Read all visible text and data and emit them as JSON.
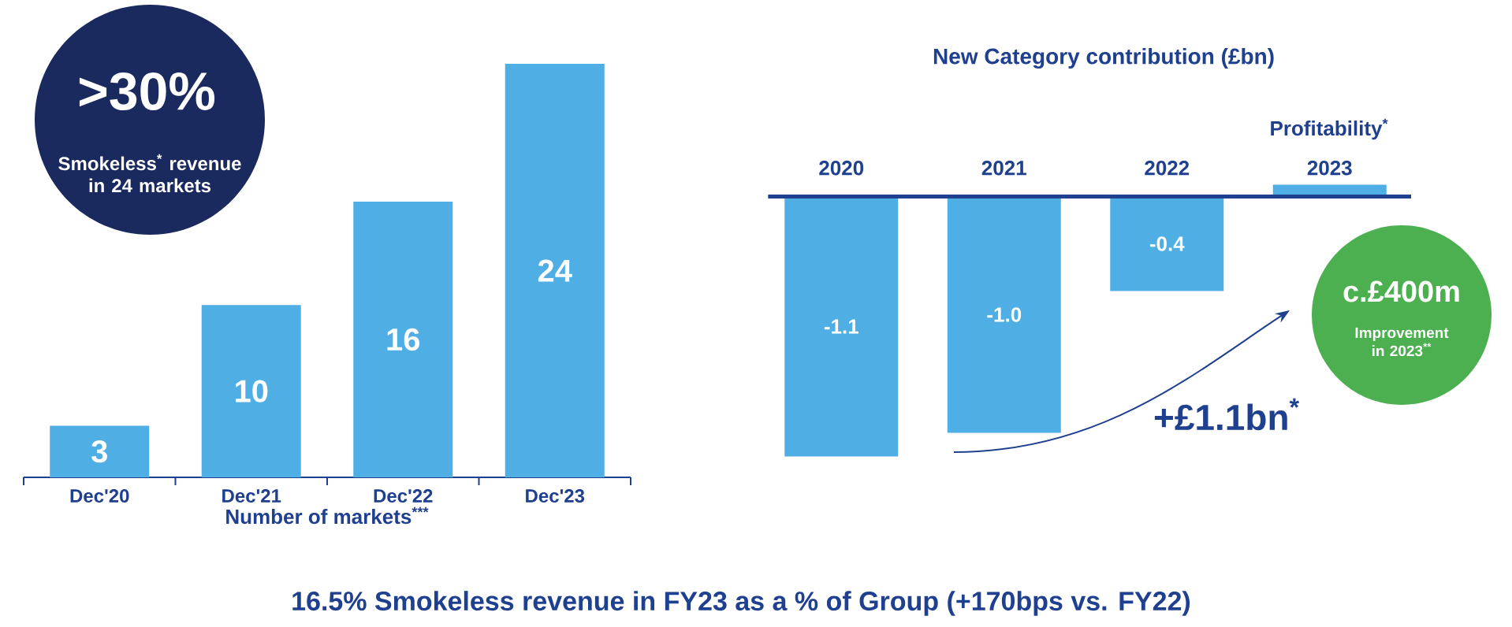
{
  "chart_data": [
    {
      "type": "bar",
      "categories": [
        "Dec'20",
        "Dec'21",
        "Dec'22",
        "Dec'23"
      ],
      "values": [
        3,
        10,
        16,
        24
      ],
      "color": "#4faee3",
      "data_labels": true,
      "xlabel": "Number of markets$^{***}$",
      "annotations": [
        ">30%",
        "Smokeless$^{*}$ revenue in 24 markets",
        "16.5% Smokeless revenue in FY23 as a % of Group (+170bps vs. FY22)"
      ]
    },
    {
      "type": "bar",
      "title": "New Category contribution (£bn)",
      "categories": [
        "2020",
        "2021",
        "2022",
        "2023"
      ],
      "values": [
        -1.1,
        -1.0,
        -0.4,
        0.05
      ],
      "color": "#4faee3",
      "value_labels": [
        "-1.1",
        "-1.0",
        "-0.4",
        null
      ],
      "annotations": [
        "Profitability$^{*}$",
        "c.£400m",
        "Improvement in 2023$^{**}$",
        "+£1.1bn$^{*}$"
      ]
    }
  ]
}
